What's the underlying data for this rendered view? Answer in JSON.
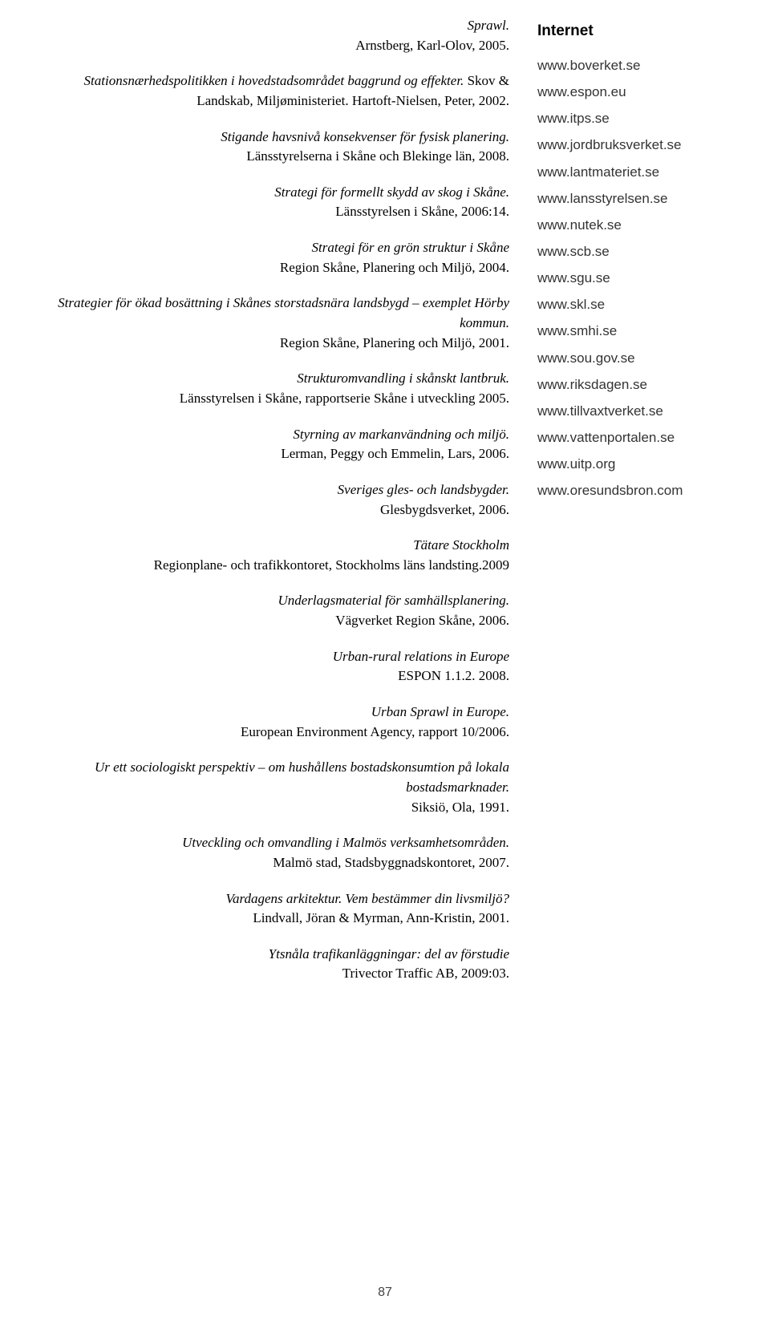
{
  "references": [
    {
      "title": "Sprawl.",
      "meta": "Arnstberg, Karl-Olov, 2005."
    },
    {
      "title": "Stationsnærhedspolitikken i hovedstadsområdet baggrund og effekter.",
      "meta": " Skov & Landskab, Miljøministeriet. Hartoft-Nielsen, Peter, 2002."
    },
    {
      "title": "Stigande havsnivå konsekvenser för fysisk planering.",
      "meta": "Länsstyrelserna i Skåne och Blekinge län, 2008."
    },
    {
      "title": "Strategi för formellt skydd av skog i Skåne.",
      "meta": "Länsstyrelsen i Skåne, 2006:14."
    },
    {
      "title": "Strategi för en grön struktur i Skåne",
      "meta": "Region Skåne, Planering och Miljö, 2004."
    },
    {
      "title": "Strategier för ökad bosättning i Skånes storstadsnära landsbygd – exemplet Hörby kommun.",
      "meta": "Region Skåne, Planering och Miljö, 2001."
    },
    {
      "title": "Strukturomvandling i skånskt lantbruk.",
      "meta": "Länsstyrelsen i Skåne, rapportserie Skåne i utveckling 2005."
    },
    {
      "title": "Styrning av markanvändning och miljö.",
      "meta": "Lerman, Peggy och Emmelin, Lars, 2006."
    },
    {
      "title": "Sveriges gles- och landsbygder.",
      "meta": "Glesbygdsverket, 2006."
    },
    {
      "title": "Tätare Stockholm",
      "meta": "Regionplane- och trafikkontoret, Stockholms läns landsting.2009"
    },
    {
      "title": "Underlagsmaterial för samhällsplanering.",
      "meta": "Vägverket Region Skåne, 2006."
    },
    {
      "title": "Urban-rural relations in Europe",
      "meta": "ESPON 1.1.2. 2008."
    },
    {
      "title": "Urban Sprawl in Europe.",
      "meta": "European Environment Agency, rapport 10/2006."
    },
    {
      "title": "Ur ett sociologiskt perspektiv – om hushållens bostadskonsumtion på lokala bostadsmarknader.",
      "meta": "Siksiö, Ola, 1991."
    },
    {
      "title": "Utveckling och omvandling i Malmös verksamhetsområden.",
      "meta": "Malmö stad, Stadsbyggnadskontoret, 2007."
    },
    {
      "title": "Vardagens arkitektur. Vem bestämmer din livsmiljö?",
      "meta": "Lindvall, Jöran & Myrman, Ann-Kristin, 2001."
    },
    {
      "title": "Ytsnåla trafikanläggningar: del av förstudie",
      "meta": "Trivector Traffic AB, 2009:03."
    }
  ],
  "internet": {
    "heading": "Internet",
    "urls": [
      "www.boverket.se",
      "www.espon.eu",
      "www.itps.se",
      "www.jordbruksverket.se",
      "www.lantmateriet.se",
      "www.lansstyrelsen.se",
      "www.nutek.se",
      "www.scb.se",
      "www.sgu.se",
      "www.skl.se",
      "www.smhi.se",
      "www.sou.gov.se",
      "www.riksdagen.se",
      "www.tillvaxtverket.se",
      "www.vattenportalen.se",
      "www.uitp.org",
      "www.oresundsbron.com"
    ]
  },
  "pageNumber": "87"
}
